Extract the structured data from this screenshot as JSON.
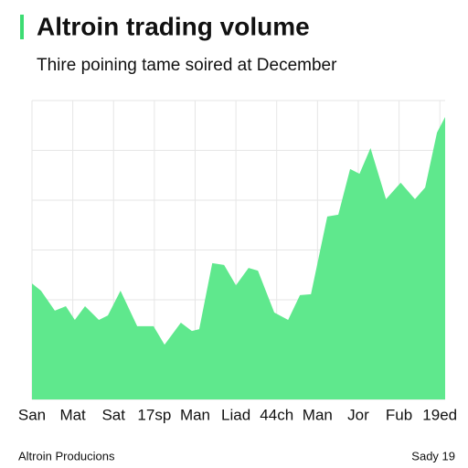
{
  "chart_data": {
    "type": "area",
    "title": "Altroin trading volume",
    "subtitle": "Thire poining tame soired at December",
    "footer_left": "Altroin Producions",
    "footer_right": "Sady 19",
    "xlim": [
      0,
      10.13
    ],
    "ylim": [
      0,
      100
    ],
    "xticks": [
      {
        "value": 0,
        "label": "San"
      },
      {
        "value": 1,
        "label": "Mat"
      },
      {
        "value": 2,
        "label": "Sat"
      },
      {
        "value": 3,
        "label": "17sp"
      },
      {
        "value": 4,
        "label": "Man"
      },
      {
        "value": 5,
        "label": "Liad"
      },
      {
        "value": 6,
        "label": "44ch"
      },
      {
        "value": 7,
        "label": "Man"
      },
      {
        "value": 8,
        "label": "Jor"
      },
      {
        "value": 9,
        "label": "Fub"
      },
      {
        "value": 10,
        "label": "19ed"
      }
    ],
    "grid": true,
    "x": [
      0,
      0.22,
      0.56,
      0.83,
      1.05,
      1.3,
      1.64,
      1.86,
      2.17,
      2.58,
      2.98,
      3.25,
      3.65,
      3.92,
      4.1,
      4.42,
      4.71,
      5,
      5.31,
      5.54,
      5.94,
      6.28,
      6.57,
      6.84,
      7.24,
      7.51,
      7.8,
      8.03,
      8.3,
      8.68,
      9.04,
      9.39,
      9.64,
      9.93,
      10.13
    ],
    "series": [
      {
        "color": "#5fe88d",
        "values": [
          38.8,
          36.4,
          29.7,
          31.2,
          26.6,
          31.2,
          26.6,
          28.1,
          36.4,
          24.5,
          24.5,
          18.3,
          25.7,
          22.9,
          23.5,
          45.6,
          45,
          38.2,
          44,
          43.1,
          29.1,
          26.6,
          34.9,
          35.2,
          61.2,
          61.8,
          77.1,
          75.5,
          84.1,
          67,
          72.5,
          67,
          70.9,
          89.3,
          94.5
        ]
      }
    ]
  }
}
